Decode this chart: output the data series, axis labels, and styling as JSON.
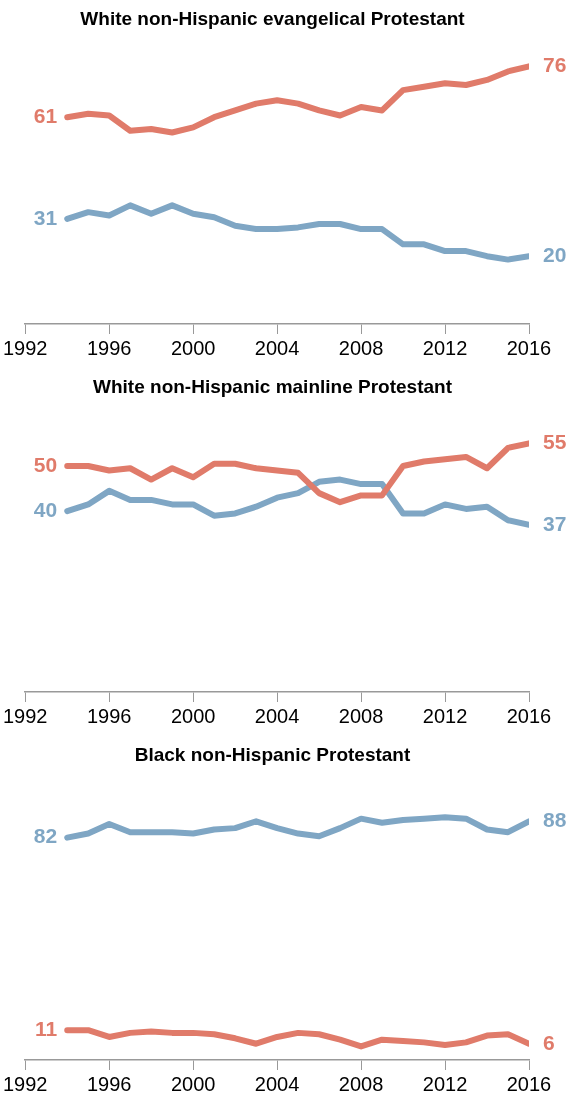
{
  "chart_data": [
    {
      "type": "line",
      "title": "White non-Hispanic evangelical Protestant",
      "x": [
        1994,
        1995,
        1996,
        1997,
        1998,
        1999,
        2000,
        2001,
        2002,
        2003,
        2004,
        2005,
        2006,
        2007,
        2008,
        2009,
        2010,
        2011,
        2012,
        2013,
        2014,
        2015,
        2016
      ],
      "xlim": [
        1992,
        2016
      ],
      "xticks": [
        1992,
        1996,
        2000,
        2004,
        2008,
        2012,
        2016
      ],
      "tick_labels": "x",
      "grid": false,
      "legend": false,
      "series": [
        {
          "color": "#e07b6a",
          "values": [
            61,
            62,
            61.5,
            57,
            57.5,
            56.5,
            58,
            61,
            63,
            65,
            66,
            65,
            63,
            61.5,
            64,
            63,
            69,
            70,
            71,
            70.5,
            72,
            74.5,
            76
          ],
          "value_labels": [
            "61",
            null,
            null,
            null,
            null,
            null,
            null,
            null,
            null,
            null,
            null,
            null,
            null,
            null,
            null,
            null,
            null,
            null,
            null,
            null,
            null,
            null,
            "76"
          ]
        },
        {
          "color": "#7fa6c4",
          "values": [
            31,
            33,
            32,
            35,
            32.5,
            35,
            32.5,
            31.5,
            29,
            28,
            28,
            28.5,
            29.5,
            29.5,
            28,
            28,
            23.5,
            23.5,
            21.5,
            21.5,
            20,
            19,
            20
          ],
          "value_labels": [
            "31",
            null,
            null,
            null,
            null,
            null,
            null,
            null,
            null,
            null,
            null,
            null,
            null,
            null,
            null,
            null,
            null,
            null,
            null,
            null,
            null,
            null,
            "20"
          ]
        }
      ]
    },
    {
      "type": "line",
      "title": "White non-Hispanic mainline Protestant",
      "x": [
        1994,
        1995,
        1996,
        1997,
        1998,
        1999,
        2000,
        2001,
        2002,
        2003,
        2004,
        2005,
        2006,
        2007,
        2008,
        2009,
        2010,
        2011,
        2012,
        2013,
        2014,
        2015,
        2016
      ],
      "xlim": [
        1992,
        2016
      ],
      "xticks": [
        1992,
        1996,
        2000,
        2004,
        2008,
        2012,
        2016
      ],
      "tick_labels": "x",
      "grid": false,
      "legend": false,
      "series": [
        {
          "color": "#e07b6a",
          "values": [
            50,
            50,
            49,
            49.5,
            47,
            49.5,
            47.5,
            50.5,
            50.5,
            49.5,
            49,
            48.5,
            44,
            42,
            43.5,
            43.5,
            50,
            51,
            51.5,
            52,
            49.5,
            54,
            55
          ],
          "value_labels": [
            "50",
            null,
            null,
            null,
            null,
            null,
            null,
            null,
            null,
            null,
            null,
            null,
            null,
            null,
            null,
            null,
            null,
            null,
            null,
            null,
            null,
            null,
            "55"
          ]
        },
        {
          "color": "#7fa6c4",
          "values": [
            40,
            41.5,
            44.5,
            42.5,
            42.5,
            41.5,
            41.5,
            39,
            39.5,
            41,
            43,
            44,
            46.5,
            47,
            46,
            46,
            39.5,
            39.5,
            41.5,
            40.5,
            41,
            38,
            37
          ],
          "value_labels": [
            "40",
            null,
            null,
            null,
            null,
            null,
            null,
            null,
            null,
            null,
            null,
            null,
            null,
            null,
            null,
            null,
            null,
            null,
            null,
            null,
            null,
            null,
            "37"
          ]
        }
      ]
    },
    {
      "type": "line",
      "title": "Black non-Hispanic Protestant",
      "x": [
        1994,
        1995,
        1996,
        1997,
        1998,
        1999,
        2000,
        2001,
        2002,
        2003,
        2004,
        2005,
        2006,
        2007,
        2008,
        2009,
        2010,
        2011,
        2012,
        2013,
        2014,
        2015,
        2016
      ],
      "xlim": [
        1992,
        2016
      ],
      "xticks": [
        1992,
        1996,
        2000,
        2004,
        2008,
        2012,
        2016
      ],
      "tick_labels": "x",
      "grid": false,
      "legend": false,
      "series": [
        {
          "color": "#7fa6c4",
          "values": [
            82,
            83.5,
            87,
            84,
            84,
            84,
            83.5,
            85,
            85.5,
            88,
            85.5,
            83.5,
            82.5,
            85.5,
            89,
            87.5,
            88.5,
            89,
            89.5,
            89,
            85,
            84,
            88
          ],
          "value_labels": [
            "82",
            null,
            null,
            null,
            null,
            null,
            null,
            null,
            null,
            null,
            null,
            null,
            null,
            null,
            null,
            null,
            null,
            null,
            null,
            null,
            null,
            null,
            "88"
          ]
        },
        {
          "color": "#e07b6a",
          "values": [
            11,
            11,
            8.5,
            10,
            10.5,
            10,
            10,
            9.5,
            8,
            6,
            8.5,
            10,
            9.5,
            7.5,
            5,
            7.5,
            7,
            6.5,
            5.5,
            6.5,
            9,
            9.5,
            6
          ],
          "value_labels": [
            "11",
            null,
            null,
            null,
            null,
            null,
            null,
            null,
            null,
            null,
            null,
            null,
            null,
            null,
            null,
            null,
            null,
            null,
            null,
            null,
            null,
            null,
            "6"
          ]
        }
      ]
    }
  ]
}
